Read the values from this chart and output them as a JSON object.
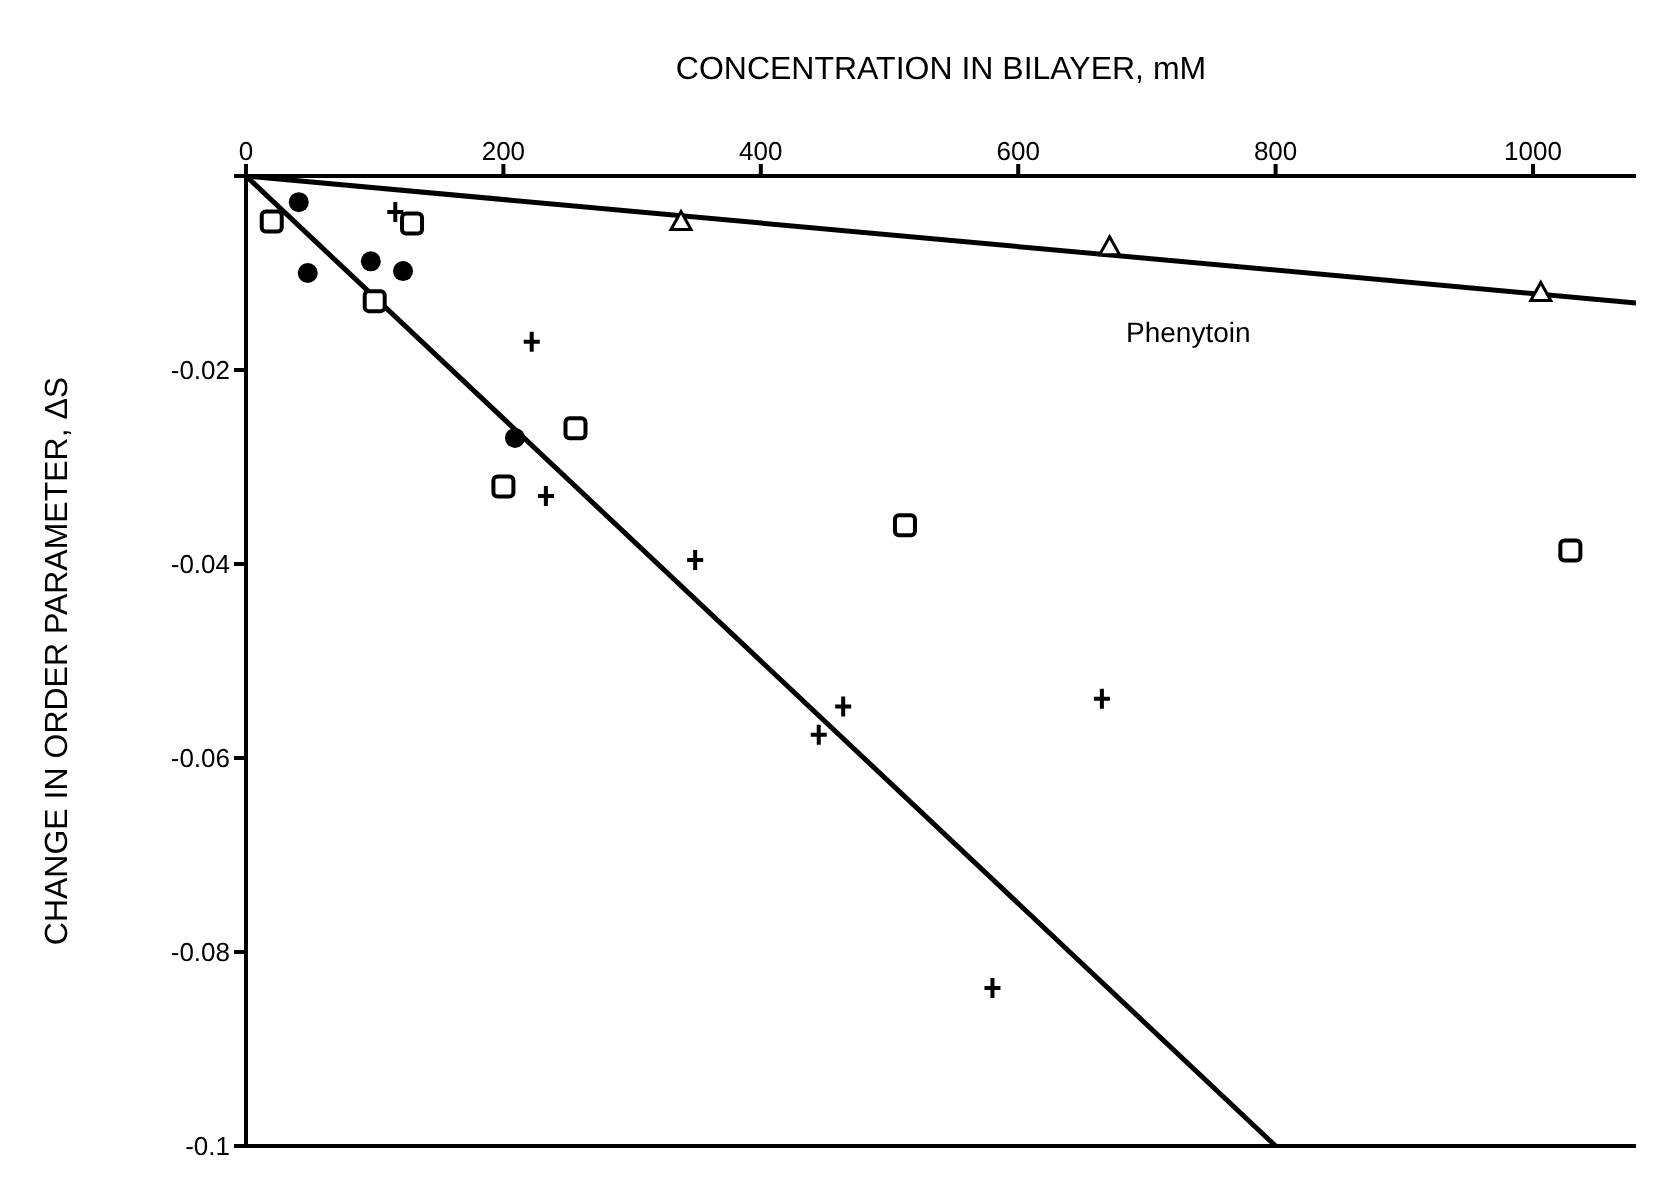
{
  "chart_data": {
    "type": "scatter",
    "xlabel": "CONCENTRATION IN BILAYER, mM",
    "ylabel": "CHANGE IN ORDER PARAMETER, ΔS",
    "xlim": [
      0,
      1080
    ],
    "xticks": [
      0,
      200,
      400,
      600,
      800,
      1000
    ],
    "ylim": [
      -0.1,
      0
    ],
    "yticks": [
      {
        "value": 0,
        "label": null
      },
      -0.02,
      -0.04,
      -0.06,
      -0.08,
      -0.1
    ],
    "grid": false,
    "legend": false,
    "annotations": [
      "Phenytoin"
    ],
    "series": [
      {
        "marker": "circle",
        "color": "#000000",
        "x": [
          41,
          48,
          97,
          122,
          209
        ],
        "values": [
          -0.0027,
          -0.01,
          -0.0088,
          -0.0098,
          -0.027
        ]
      },
      {
        "marker": "square",
        "color": "#000000",
        "x": [
          20,
          100,
          200
        ],
        "values": [
          -0.0047,
          -0.0129,
          -0.032
        ]
      },
      {
        "marker": "square",
        "color": "#000000",
        "x": [
          129,
          256,
          512,
          1029
        ],
        "values": [
          -0.0049,
          -0.026,
          -0.036,
          -0.0386
        ]
      },
      {
        "marker": "cross",
        "color": "#000000",
        "x": [
          116,
          233,
          349,
          464,
          580
        ],
        "values": [
          -0.0037,
          -0.033,
          -0.0396,
          -0.0547,
          -0.0837
        ]
      },
      {
        "marker": "cross",
        "color": "#000000",
        "x": [
          222,
          445,
          665
        ],
        "values": [
          -0.0171,
          -0.0576,
          -0.0539
        ]
      },
      {
        "marker": "triangle",
        "color": "#000000",
        "x": [
          338,
          671,
          1006
        ],
        "values": [
          -0.0047,
          -0.0073,
          -0.012
        ]
      },
      {
        "type": "line",
        "marker": "none",
        "color": "#000000",
        "x": [
          0,
          800
        ],
        "values": [
          0,
          -0.1
        ]
      },
      {
        "type": "line",
        "marker": "none",
        "color": "#000000",
        "x": [
          0,
          1080
        ],
        "values": [
          0,
          -0.0131
        ]
      }
    ]
  }
}
